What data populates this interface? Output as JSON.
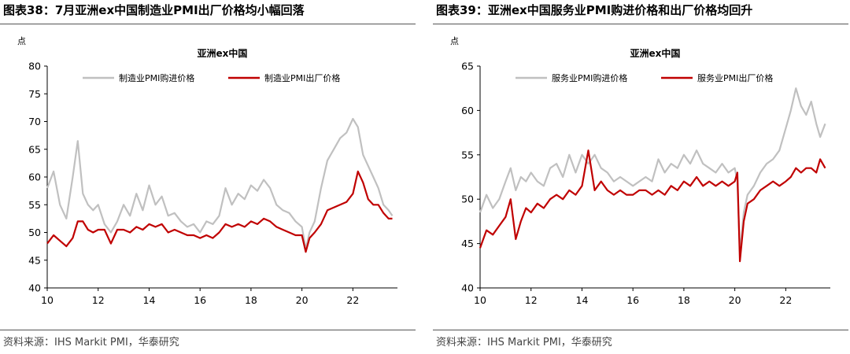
{
  "chart_data": [
    {
      "type": "line",
      "figure_label": "图表38：",
      "figure_title": "7月亚洲ex中国制造业PMI出厂价格均小幅回落",
      "title": "亚洲ex中国",
      "yunit": "点",
      "xlim": [
        2010,
        2023.75
      ],
      "ylim": [
        40,
        80
      ],
      "yticks": [
        40,
        45,
        50,
        55,
        60,
        65,
        70,
        75,
        80
      ],
      "xticks": [
        "10",
        "12",
        "14",
        "16",
        "18",
        "20",
        "22"
      ],
      "xtick_years": [
        2010,
        2012,
        2014,
        2016,
        2018,
        2020,
        2022
      ],
      "legend_position": "top",
      "source": "资料来源：IHS Markit PMI，华泰研究",
      "series": [
        {
          "name": "制造业PMI购进价格",
          "color": "#c0c0c0",
          "x": [
            2010.0,
            2010.25,
            2010.5,
            2010.75,
            2011.0,
            2011.2,
            2011.4,
            2011.6,
            2011.8,
            2012.0,
            2012.25,
            2012.5,
            2012.75,
            2013.0,
            2013.25,
            2013.5,
            2013.75,
            2014.0,
            2014.25,
            2014.5,
            2014.75,
            2015.0,
            2015.25,
            2015.5,
            2015.75,
            2016.0,
            2016.25,
            2016.5,
            2016.75,
            2017.0,
            2017.25,
            2017.5,
            2017.75,
            2018.0,
            2018.25,
            2018.5,
            2018.75,
            2019.0,
            2019.25,
            2019.5,
            2019.75,
            2020.0,
            2020.15,
            2020.3,
            2020.5,
            2020.75,
            2021.0,
            2021.25,
            2021.5,
            2021.75,
            2022.0,
            2022.2,
            2022.4,
            2022.6,
            2022.8,
            2023.0,
            2023.2,
            2023.4,
            2023.55
          ],
          "y": [
            58.0,
            61.0,
            55.0,
            52.5,
            60.0,
            66.5,
            57.0,
            55.0,
            54.0,
            55.0,
            51.5,
            50.0,
            52.0,
            55.0,
            53.0,
            57.0,
            54.0,
            58.5,
            55.0,
            56.5,
            53.0,
            53.5,
            52.0,
            51.0,
            51.5,
            50.0,
            52.0,
            51.5,
            53.0,
            58.0,
            55.0,
            57.0,
            56.0,
            58.5,
            57.5,
            59.5,
            58.0,
            55.0,
            54.0,
            53.5,
            52.0,
            51.0,
            47.0,
            50.0,
            52.0,
            58.0,
            63.0,
            65.0,
            67.0,
            68.0,
            70.5,
            69.0,
            64.0,
            62.0,
            60.0,
            58.0,
            55.0,
            54.0,
            53.0
          ]
        },
        {
          "name": "制造业PMI出厂价格",
          "color": "#c00000",
          "x": [
            2010.0,
            2010.25,
            2010.5,
            2010.75,
            2011.0,
            2011.2,
            2011.4,
            2011.6,
            2011.8,
            2012.0,
            2012.25,
            2012.5,
            2012.75,
            2013.0,
            2013.25,
            2013.5,
            2013.75,
            2014.0,
            2014.25,
            2014.5,
            2014.75,
            2015.0,
            2015.25,
            2015.5,
            2015.75,
            2016.0,
            2016.25,
            2016.5,
            2016.75,
            2017.0,
            2017.25,
            2017.5,
            2017.75,
            2018.0,
            2018.25,
            2018.5,
            2018.75,
            2019.0,
            2019.25,
            2019.5,
            2019.75,
            2020.0,
            2020.15,
            2020.3,
            2020.5,
            2020.75,
            2021.0,
            2021.25,
            2021.5,
            2021.75,
            2022.0,
            2022.2,
            2022.4,
            2022.6,
            2022.8,
            2023.0,
            2023.2,
            2023.4,
            2023.55
          ],
          "y": [
            48.0,
            49.5,
            48.5,
            47.5,
            49.0,
            52.0,
            52.0,
            50.5,
            50.0,
            50.5,
            50.5,
            48.0,
            50.5,
            50.5,
            50.0,
            51.0,
            50.5,
            51.5,
            51.0,
            51.5,
            50.0,
            50.5,
            50.0,
            49.5,
            49.5,
            49.0,
            49.5,
            49.0,
            50.0,
            51.5,
            51.0,
            51.5,
            51.0,
            52.0,
            51.5,
            52.5,
            52.0,
            51.0,
            50.5,
            50.0,
            49.5,
            49.5,
            46.5,
            49.0,
            50.0,
            51.5,
            54.0,
            54.5,
            55.0,
            55.5,
            57.0,
            61.0,
            59.0,
            56.0,
            55.0,
            55.0,
            53.5,
            52.5,
            52.5
          ]
        }
      ]
    },
    {
      "type": "line",
      "figure_label": "图表39：",
      "figure_title": "亚洲ex中国服务业PMI购进价格和出厂价格均回升",
      "title": "亚洲ex中国",
      "yunit": "点",
      "xlim": [
        2010,
        2023.75
      ],
      "ylim": [
        40,
        65
      ],
      "yticks": [
        40,
        45,
        50,
        55,
        60,
        65
      ],
      "xticks": [
        "10",
        "12",
        "14",
        "16",
        "18",
        "20",
        "22"
      ],
      "xtick_years": [
        2010,
        2012,
        2014,
        2016,
        2018,
        2020,
        2022
      ],
      "legend_position": "top",
      "source": "资料来源：IHS Markit PMI，华泰研究",
      "series": [
        {
          "name": "服务业PMI购进价格",
          "color": "#c0c0c0",
          "x": [
            2010.0,
            2010.25,
            2010.5,
            2010.75,
            2011.0,
            2011.2,
            2011.4,
            2011.6,
            2011.8,
            2012.0,
            2012.25,
            2012.5,
            2012.75,
            2013.0,
            2013.25,
            2013.5,
            2013.75,
            2014.0,
            2014.25,
            2014.5,
            2014.75,
            2015.0,
            2015.25,
            2015.5,
            2015.75,
            2016.0,
            2016.25,
            2016.5,
            2016.75,
            2017.0,
            2017.25,
            2017.5,
            2017.75,
            2018.0,
            2018.25,
            2018.5,
            2018.75,
            2019.0,
            2019.25,
            2019.5,
            2019.75,
            2020.0,
            2020.1,
            2020.2,
            2020.35,
            2020.5,
            2020.75,
            2021.0,
            2021.25,
            2021.5,
            2021.75,
            2022.0,
            2022.2,
            2022.4,
            2022.6,
            2022.8,
            2023.0,
            2023.2,
            2023.35,
            2023.55
          ],
          "y": [
            48.5,
            50.5,
            49.0,
            50.0,
            52.0,
            53.5,
            51.0,
            52.5,
            52.0,
            53.0,
            52.0,
            51.5,
            53.5,
            54.0,
            52.5,
            55.0,
            53.0,
            55.0,
            54.0,
            55.0,
            53.5,
            53.0,
            52.0,
            52.5,
            52.0,
            51.5,
            52.0,
            52.5,
            52.0,
            54.5,
            53.0,
            54.0,
            53.5,
            55.0,
            54.0,
            55.5,
            54.0,
            53.5,
            53.0,
            54.0,
            53.0,
            53.5,
            52.0,
            44.0,
            48.5,
            50.5,
            51.5,
            53.0,
            54.0,
            54.5,
            55.5,
            58.0,
            60.0,
            62.5,
            60.5,
            59.5,
            61.0,
            58.5,
            57.0,
            58.5
          ]
        },
        {
          "name": "服务业PMI出厂价格",
          "color": "#c00000",
          "x": [
            2010.0,
            2010.25,
            2010.5,
            2010.75,
            2011.0,
            2011.2,
            2011.4,
            2011.6,
            2011.8,
            2012.0,
            2012.25,
            2012.5,
            2012.75,
            2013.0,
            2013.25,
            2013.5,
            2013.75,
            2014.0,
            2014.25,
            2014.5,
            2014.75,
            2015.0,
            2015.25,
            2015.5,
            2015.75,
            2016.0,
            2016.25,
            2016.5,
            2016.75,
            2017.0,
            2017.25,
            2017.5,
            2017.75,
            2018.0,
            2018.25,
            2018.5,
            2018.75,
            2019.0,
            2019.25,
            2019.5,
            2019.75,
            2020.0,
            2020.1,
            2020.2,
            2020.35,
            2020.5,
            2020.75,
            2021.0,
            2021.25,
            2021.5,
            2021.75,
            2022.0,
            2022.2,
            2022.4,
            2022.6,
            2022.8,
            2023.0,
            2023.2,
            2023.35,
            2023.55
          ],
          "y": [
            44.5,
            46.5,
            46.0,
            47.0,
            48.0,
            50.0,
            45.5,
            47.5,
            49.0,
            48.5,
            49.5,
            49.0,
            50.0,
            50.5,
            50.0,
            51.0,
            50.5,
            51.5,
            55.5,
            51.0,
            52.0,
            51.0,
            50.5,
            51.0,
            50.5,
            50.5,
            51.0,
            51.0,
            50.5,
            51.0,
            50.5,
            51.5,
            51.0,
            52.0,
            51.5,
            52.5,
            51.5,
            52.0,
            51.5,
            52.0,
            51.5,
            52.0,
            53.0,
            43.0,
            47.5,
            49.5,
            50.0,
            51.0,
            51.5,
            52.0,
            51.5,
            52.0,
            52.5,
            53.5,
            53.0,
            53.5,
            53.5,
            53.0,
            54.5,
            53.5
          ]
        }
      ]
    }
  ]
}
